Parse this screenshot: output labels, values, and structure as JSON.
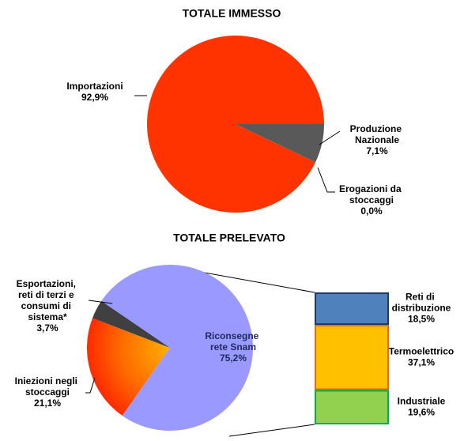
{
  "chart_data": [
    {
      "type": "pie",
      "title": "TOTALE IMMESSO",
      "categories": [
        "Produzione\nNazionale",
        "Erogazioni da\nstoccaggi",
        "Importazioni"
      ],
      "values": [
        7.1,
        0.0,
        92.9
      ],
      "value_labels": [
        "7,1%",
        "0,0%",
        "92,9%"
      ],
      "colors": [
        "#595959",
        "#7f7f7f",
        "#ff3300"
      ]
    },
    {
      "type": "pie",
      "title": "TOTALE PRELEVATO",
      "categories": [
        "Iniezioni negli\nstoccaggi",
        "Esportazioni,\nreti di terzi e\nconsumi di\nsistema*",
        "Riconsegne\nrete Snam"
      ],
      "values": [
        21.1,
        3.7,
        75.2
      ],
      "value_labels": [
        "21,1%",
        "3,7%",
        "75,2%"
      ],
      "colors": [
        "#ff3300",
        "#404040",
        "#9999ff"
      ]
    },
    {
      "type": "stacked-bar",
      "series": [
        {
          "name": "Reti di\ndistribuzione",
          "color": "#4f81bd",
          "edgecolor": "#1f3864",
          "values": [
            18.5
          ],
          "value_labels": [
            "18,5%"
          ]
        },
        {
          "name": "Termoelettrico",
          "color": "#ffc000",
          "edgecolor": "#e46c0a",
          "values": [
            37.1
          ],
          "value_labels": [
            "37,1%"
          ]
        },
        {
          "name": "Industriale",
          "color": "#92d050",
          "edgecolor": "#00b050",
          "values": [
            19.6
          ],
          "value_labels": [
            "19,6%"
          ]
        }
      ]
    }
  ]
}
